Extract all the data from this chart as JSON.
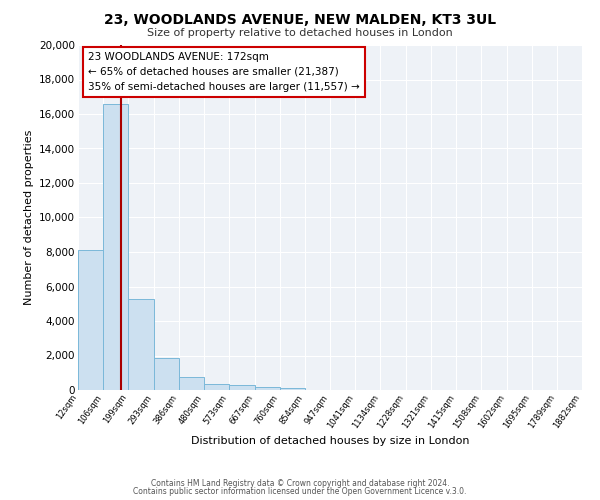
{
  "title": "23, WOODLANDS AVENUE, NEW MALDEN, KT3 3UL",
  "subtitle": "Size of property relative to detached houses in London",
  "xlabel": "Distribution of detached houses by size in London",
  "ylabel": "Number of detached properties",
  "bar_left_edges": [
    12,
    106,
    199,
    293,
    386,
    480,
    573,
    667,
    760,
    854,
    947,
    1041,
    1134,
    1228,
    1321,
    1415,
    1508,
    1602,
    1695,
    1789
  ],
  "bar_widths": [
    94,
    93,
    94,
    93,
    94,
    93,
    94,
    93,
    94,
    93,
    94,
    93,
    94,
    93,
    94,
    93,
    94,
    93,
    94,
    93
  ],
  "bar_heights": [
    8100,
    16600,
    5300,
    1850,
    780,
    330,
    270,
    180,
    120,
    0,
    0,
    0,
    0,
    0,
    0,
    0,
    0,
    0,
    0,
    0
  ],
  "bar_color": "#cce0f0",
  "bar_edge_color": "#7ab8d9",
  "x_tick_labels": [
    "12sqm",
    "106sqm",
    "199sqm",
    "293sqm",
    "386sqm",
    "480sqm",
    "573sqm",
    "667sqm",
    "760sqm",
    "854sqm",
    "947sqm",
    "1041sqm",
    "1134sqm",
    "1228sqm",
    "1321sqm",
    "1415sqm",
    "1508sqm",
    "1602sqm",
    "1695sqm",
    "1789sqm",
    "1882sqm"
  ],
  "ylim": [
    0,
    20000
  ],
  "yticks": [
    0,
    2000,
    4000,
    6000,
    8000,
    10000,
    12000,
    14000,
    16000,
    18000,
    20000
  ],
  "xlim_left": 12,
  "xlim_right": 1882,
  "vline_x": 172,
  "vline_color": "#aa0000",
  "annotation_title": "23 WOODLANDS AVENUE: 172sqm",
  "annotation_line1": "← 65% of detached houses are smaller (21,387)",
  "annotation_line2": "35% of semi-detached houses are larger (11,557) →",
  "footer1": "Contains HM Land Registry data © Crown copyright and database right 2024.",
  "footer2": "Contains public sector information licensed under the Open Government Licence v.3.0.",
  "background_color": "#eef2f7",
  "grid_color": "#ffffff",
  "fig_bg_color": "#ffffff"
}
